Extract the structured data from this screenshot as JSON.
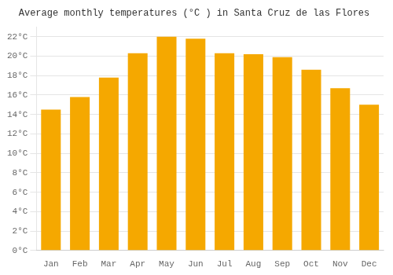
{
  "chart_data": {
    "type": "bar",
    "title": "Average monthly temperatures (°C ) in Santa Cruz de las Flores",
    "categories": [
      "Jan",
      "Feb",
      "Mar",
      "Apr",
      "May",
      "Jun",
      "Jul",
      "Aug",
      "Sep",
      "Oct",
      "Nov",
      "Dec"
    ],
    "values": [
      14.5,
      15.8,
      17.8,
      20.3,
      22.0,
      21.8,
      20.3,
      20.2,
      19.9,
      18.6,
      16.7,
      15.0
    ],
    "color": "#F5A800",
    "ylim": [
      0,
      23
    ],
    "yticks": [
      {
        "value": 0,
        "label": "0°C"
      },
      {
        "value": 2,
        "label": "2°C"
      },
      {
        "value": 4,
        "label": "4°C"
      },
      {
        "value": 6,
        "label": "6°C"
      },
      {
        "value": 8,
        "label": "8°C"
      },
      {
        "value": 10,
        "label": "10°C"
      },
      {
        "value": 12,
        "label": "12°C"
      },
      {
        "value": 14,
        "label": "14°C"
      },
      {
        "value": 16,
        "label": "16°C"
      },
      {
        "value": 18,
        "label": "18°C"
      },
      {
        "value": 20,
        "label": "20°C"
      },
      {
        "value": 22,
        "label": "22°C"
      }
    ],
    "grid": true
  }
}
